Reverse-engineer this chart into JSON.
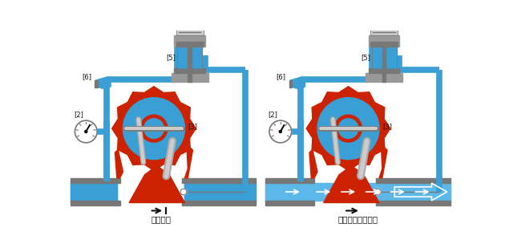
{
  "bg_color": "#ffffff",
  "title1": "阀门关闭",
  "title2": "阀门开启（泄压）",
  "blue": "#3a9fd4",
  "blue_light": "#a8d8ea",
  "blue_mid": "#5bb8e8",
  "red": "#cc2200",
  "gray": "#aaaaaa",
  "gray_dark": "#777777",
  "gray_med": "#999999",
  "white": "#ffffff",
  "black": "#111111",
  "silver": "#cccccc",
  "figsize": [
    6.3,
    3.14
  ],
  "dpi": 100
}
